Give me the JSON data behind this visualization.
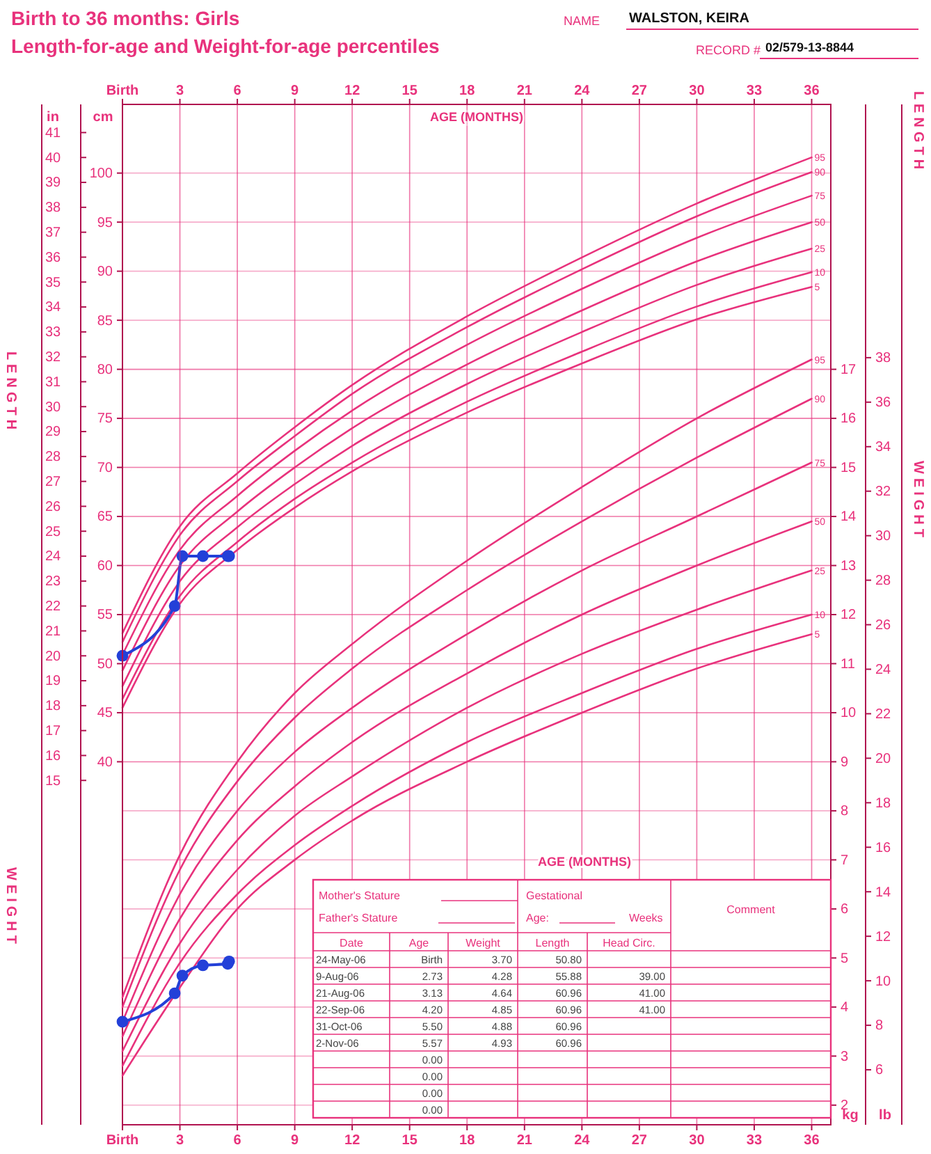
{
  "chart_data": [
    {
      "type": "line",
      "title": "Birth to 36 months: Girls",
      "subtitle": "Length-for-age and Weight-for-age percentiles",
      "xlabel": "AGE (MONTHS)",
      "ylabel": "cm",
      "y2label": "in",
      "annotations": [
        "NAME",
        "WALSTON, KEIRA",
        "RECORD #",
        "02/579-13-8844",
        "LENGTH"
      ],
      "xlim": [
        0,
        37
      ],
      "xticks": [
        {
          "value": 0,
          "label": "Birth"
        },
        3,
        6,
        9,
        12,
        15,
        18,
        21,
        24,
        27,
        30,
        33,
        36
      ],
      "ylim": [
        3,
        107
      ],
      "yticks": [
        40,
        45,
        50,
        55,
        60,
        65,
        70,
        75,
        80,
        85,
        90,
        95,
        100
      ],
      "y2lim": [
        1.18,
        42.13
      ],
      "y2ticks": [
        15,
        16,
        17,
        18,
        19,
        20,
        21,
        22,
        23,
        24,
        25,
        26,
        27,
        28,
        29,
        30,
        31,
        32,
        33,
        34,
        35,
        36,
        37,
        38,
        39,
        40,
        41
      ],
      "grid": true,
      "x": [
        0,
        3,
        6,
        9,
        12,
        18,
        24,
        30,
        36
      ],
      "series": [
        {
          "name": "95",
          "color": "#e8327c",
          "marker": "none",
          "values": [
            53.1,
            64.0,
            69.4,
            74.1,
            78.4,
            85.4,
            91.4,
            96.9,
            101.6
          ]
        },
        {
          "name": "90",
          "color": "#e8327c",
          "marker": "none",
          "values": [
            52.2,
            63.1,
            68.6,
            73.2,
            77.5,
            84.3,
            90.2,
            95.6,
            100.1
          ]
        },
        {
          "name": "75",
          "color": "#e8327c",
          "marker": "none",
          "values": [
            50.9,
            61.6,
            67.1,
            71.7,
            75.8,
            82.5,
            88.2,
            93.4,
            97.7
          ]
        },
        {
          "name": "50",
          "color": "#e8327c",
          "marker": "none",
          "values": [
            49.3,
            60.0,
            65.5,
            70.0,
            74.0,
            80.5,
            86.0,
            91.0,
            95.0
          ]
        },
        {
          "name": "25",
          "color": "#e8327c",
          "marker": "none",
          "values": [
            47.7,
            58.4,
            63.9,
            68.3,
            72.2,
            78.5,
            83.8,
            88.6,
            92.3
          ]
        },
        {
          "name": "10",
          "color": "#e8327c",
          "marker": "none",
          "values": [
            46.4,
            56.9,
            62.4,
            66.8,
            70.5,
            76.7,
            81.8,
            86.4,
            89.9
          ]
        },
        {
          "name": "5",
          "color": "#e8327c",
          "marker": "none",
          "values": [
            45.5,
            56.1,
            61.6,
            65.9,
            69.6,
            75.6,
            80.6,
            85.1,
            88.4
          ]
        },
        {
          "color": "#2340d8",
          "marker": "circle",
          "x": [
            0,
            2.73,
            3.13,
            4.2,
            5.5,
            5.57
          ],
          "values": [
            50.8,
            55.88,
            60.96,
            60.96,
            60.96,
            60.96
          ]
        }
      ]
    },
    {
      "type": "line",
      "xlabel": "AGE (MONTHS)",
      "ylabel": "kg",
      "y2label": "lb",
      "annotations": [
        "WEIGHT"
      ],
      "xlim": [
        0,
        37
      ],
      "xticks": [
        {
          "value": 0,
          "label": "Birth"
        },
        3,
        6,
        9,
        12,
        15,
        18,
        21,
        24,
        27,
        30,
        33,
        36
      ],
      "ylim": [
        1.6,
        22.4
      ],
      "yticks": [
        2,
        3,
        4,
        5,
        6,
        7,
        8,
        9,
        10,
        11,
        12,
        13,
        14,
        15,
        16,
        17
      ],
      "y2lim": [
        3.53,
        49.38
      ],
      "y2ticks": [
        6,
        8,
        10,
        12,
        14,
        16,
        18,
        20,
        22,
        24,
        26,
        28,
        30,
        32,
        34,
        36,
        38
      ],
      "grid": true,
      "x": [
        0,
        3,
        6,
        9,
        12,
        18,
        24,
        30,
        36
      ],
      "series": [
        {
          "name": "95",
          "color": "#e8327c",
          "marker": "none",
          "values": [
            4.2,
            7.1,
            9.0,
            10.4,
            11.4,
            13.1,
            14.6,
            16.0,
            17.2
          ]
        },
        {
          "name": "90",
          "color": "#e8327c",
          "marker": "none",
          "values": [
            4.0,
            6.8,
            8.6,
            9.9,
            10.9,
            12.5,
            13.9,
            15.2,
            16.4
          ]
        },
        {
          "name": "75",
          "color": "#e8327c",
          "marker": "none",
          "values": [
            3.7,
            6.3,
            8.0,
            9.2,
            10.1,
            11.6,
            12.9,
            14.0,
            15.1
          ]
        },
        {
          "name": "50",
          "color": "#e8327c",
          "marker": "none",
          "values": [
            3.4,
            5.8,
            7.4,
            8.5,
            9.4,
            10.8,
            12.0,
            13.0,
            13.9
          ]
        },
        {
          "name": "25",
          "color": "#e8327c",
          "marker": "none",
          "values": [
            3.1,
            5.3,
            6.8,
            7.9,
            8.7,
            10.1,
            11.2,
            12.1,
            12.9
          ]
        },
        {
          "name": "10",
          "color": "#e8327c",
          "marker": "none",
          "values": [
            2.8,
            4.9,
            6.3,
            7.3,
            8.1,
            9.4,
            10.4,
            11.3,
            12.0
          ]
        },
        {
          "name": "5",
          "color": "#e8327c",
          "marker": "none",
          "values": [
            2.6,
            4.4,
            6.0,
            7.0,
            7.8,
            9.0,
            10.0,
            10.9,
            11.6
          ]
        },
        {
          "color": "#2340d8",
          "marker": "circle",
          "x": [
            0,
            2.73,
            3.13,
            4.2,
            5.5,
            5.57
          ],
          "values": [
            3.7,
            4.28,
            4.64,
            4.85,
            4.88,
            4.93
          ]
        }
      ]
    },
    {
      "type": "other",
      "annotations": [
        "Mother's Stature",
        "Father's Stature",
        "Gestational",
        "Age:",
        "Weeks",
        "Comment"
      ],
      "categories": [
        "Date",
        "Age",
        "Weight",
        "Length",
        "Head  Circ."
      ],
      "cell_labels": [
        [
          "24-May-06",
          "Birth",
          "3.70",
          "50.80",
          null
        ],
        [
          "9-Aug-06",
          "2.73",
          "4.28",
          "55.88",
          "39.00"
        ],
        [
          "21-Aug-06",
          "3.13",
          "4.64",
          "60.96",
          "41.00"
        ],
        [
          "22-Sep-06",
          "4.20",
          "4.85",
          "60.96",
          "41.00"
        ],
        [
          "31-Oct-06",
          "5.50",
          "4.88",
          "60.96",
          null
        ],
        [
          "2-Nov-06",
          "5.57",
          "4.93",
          "60.96",
          null
        ],
        [
          null,
          "0.00",
          null,
          null,
          null
        ],
        [
          null,
          "0.00",
          null,
          null,
          null
        ],
        [
          null,
          "0.00",
          null,
          null,
          null
        ],
        [
          null,
          "0.00",
          null,
          null,
          null
        ]
      ]
    }
  ]
}
